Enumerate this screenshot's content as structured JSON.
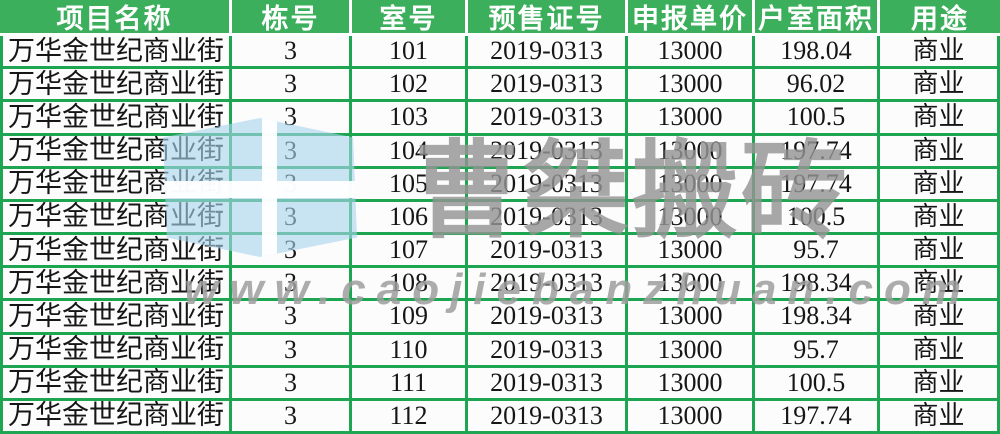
{
  "table": {
    "columns": [
      {
        "key": "project",
        "label": "项目名称"
      },
      {
        "key": "building",
        "label": "栋号"
      },
      {
        "key": "room",
        "label": "室号"
      },
      {
        "key": "permit",
        "label": "预售证号"
      },
      {
        "key": "price",
        "label": "申报单价"
      },
      {
        "key": "area",
        "label": "户室面积"
      },
      {
        "key": "usage",
        "label": "用途"
      }
    ],
    "rows": [
      [
        "万华金世纪商业街",
        "3",
        "101",
        "2019-0313",
        "13000",
        "198.04",
        "商业"
      ],
      [
        "万华金世纪商业街",
        "3",
        "102",
        "2019-0313",
        "13000",
        "96.02",
        "商业"
      ],
      [
        "万华金世纪商业街",
        "3",
        "103",
        "2019-0313",
        "13000",
        "100.5",
        "商业"
      ],
      [
        "万华金世纪商业街",
        "3",
        "104",
        "2019-0313",
        "13000",
        "197.74",
        "商业"
      ],
      [
        "万华金世纪商业街",
        "3",
        "105",
        "2019-0313",
        "13000",
        "197.74",
        "商业"
      ],
      [
        "万华金世纪商业街",
        "3",
        "106",
        "2019-0313",
        "13000",
        "100.5",
        "商业"
      ],
      [
        "万华金世纪商业街",
        "3",
        "107",
        "2019-0313",
        "13000",
        "95.7",
        "商业"
      ],
      [
        "万华金世纪商业街",
        "3",
        "108",
        "2019-0313",
        "13000",
        "198.34",
        "商业"
      ],
      [
        "万华金世纪商业街",
        "3",
        "109",
        "2019-0313",
        "13000",
        "198.34",
        "商业"
      ],
      [
        "万华金世纪商业街",
        "3",
        "110",
        "2019-0313",
        "13000",
        "95.7",
        "商业"
      ],
      [
        "万华金世纪商业街",
        "3",
        "111",
        "2019-0313",
        "13000",
        "100.5",
        "商业"
      ],
      [
        "万华金世纪商业街",
        "3",
        "112",
        "2019-0313",
        "13000",
        "197.74",
        "商业"
      ]
    ]
  },
  "watermark": {
    "title": "曹桀搬砖",
    "url": "www.caojiebanzhuan.com",
    "logo_icon": "cube-logo"
  },
  "colors": {
    "header_bg": "#3CAF5C",
    "header_text": "#FFFFFF",
    "grid_border": "#1EA551",
    "cell_bg": "#FCFCFC",
    "watermark_gray": "#989898",
    "watermark_blue": "#A8D4EC"
  }
}
